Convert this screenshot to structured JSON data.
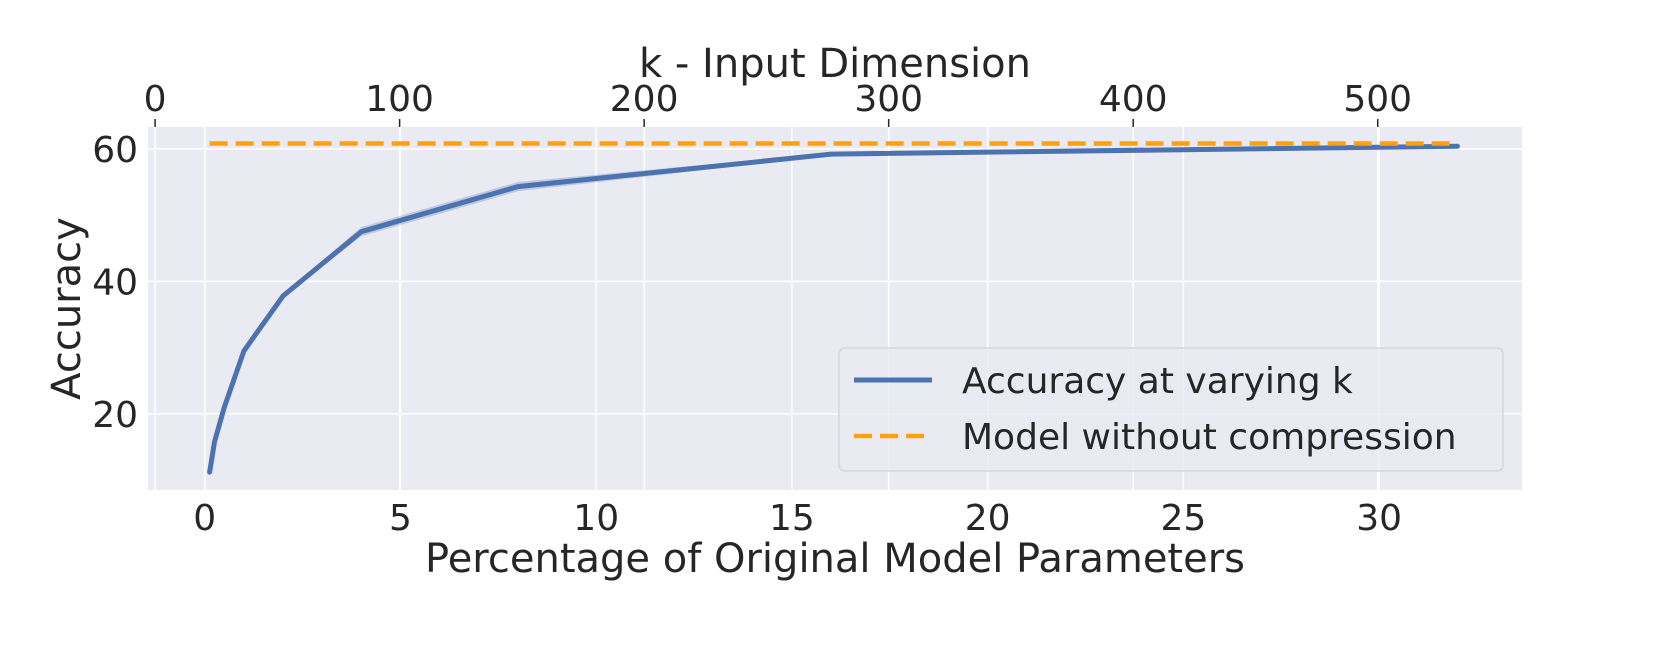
{
  "chart_data": {
    "type": "line",
    "xlabel": "Percentage of Original Model Parameters",
    "ylabel": "Accuracy",
    "x2label": "k - Input Dimension",
    "xlim": [
      -1.45,
      33.65
    ],
    "ylim": [
      8.5,
      63.3
    ],
    "x2lim": [
      -2.9,
      559
    ],
    "xticks": [
      0,
      5,
      10,
      15,
      20,
      25,
      30
    ],
    "yticks": [
      20,
      40,
      60
    ],
    "x2ticks": [
      0,
      100,
      200,
      300,
      400,
      500
    ],
    "grid": true,
    "legend_position": "lower-right",
    "series": [
      {
        "name": "Accuracy at varying k",
        "color": "#4c72b0",
        "style": "solid",
        "x": [
          0.125,
          0.25,
          0.5,
          1,
          2,
          4,
          8,
          16,
          32
        ],
        "y": [
          11.2,
          15.8,
          21.0,
          29.5,
          37.8,
          47.5,
          54.3,
          59.2,
          60.4
        ],
        "band_low": [
          11.0,
          15.6,
          20.8,
          29.3,
          37.6,
          46.8,
          53.6,
          59.0,
          60.2
        ],
        "band_high": [
          11.4,
          16.0,
          21.2,
          29.7,
          38.0,
          48.2,
          55.0,
          59.4,
          60.6
        ]
      },
      {
        "name": "Model without compression",
        "color": "#ffa00f",
        "style": "dashed",
        "x": [
          0.125,
          32
        ],
        "y": [
          60.8,
          60.8
        ]
      }
    ]
  }
}
